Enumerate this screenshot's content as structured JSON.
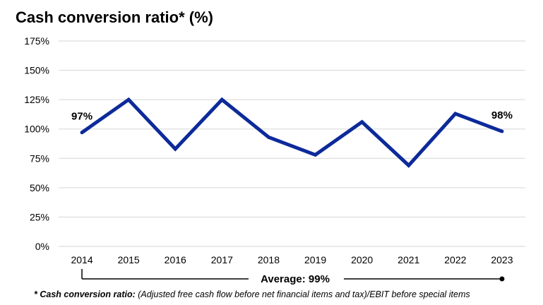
{
  "chart_data": {
    "type": "line",
    "title": "Cash conversion ratio* (%)",
    "categories": [
      "2014",
      "2015",
      "2016",
      "2017",
      "2018",
      "2019",
      "2020",
      "2021",
      "2022",
      "2023"
    ],
    "series": [
      {
        "values": [
          97,
          125,
          83,
          125,
          93,
          78,
          106,
          69,
          113,
          98
        ]
      }
    ],
    "ylim": [
      0,
      175
    ],
    "yticks": [
      0,
      25,
      50,
      75,
      100,
      125,
      150,
      175
    ],
    "ytick_labels": [
      "0%",
      "25%",
      "50%",
      "75%",
      "100%",
      "125%",
      "150%",
      "175%"
    ],
    "data_labels": [
      {
        "index": 0,
        "text": "97%"
      },
      {
        "index": 9,
        "text": "98%"
      }
    ],
    "average_label": "Average: 99%",
    "grid": true,
    "line_color": "#0d2a9a",
    "grid_color": "#d6d6d6"
  },
  "footnote": {
    "term": "* Cash conversion ratio:",
    "definition": " (Adjusted free cash flow before net financial items and tax)/EBIT before special items"
  }
}
